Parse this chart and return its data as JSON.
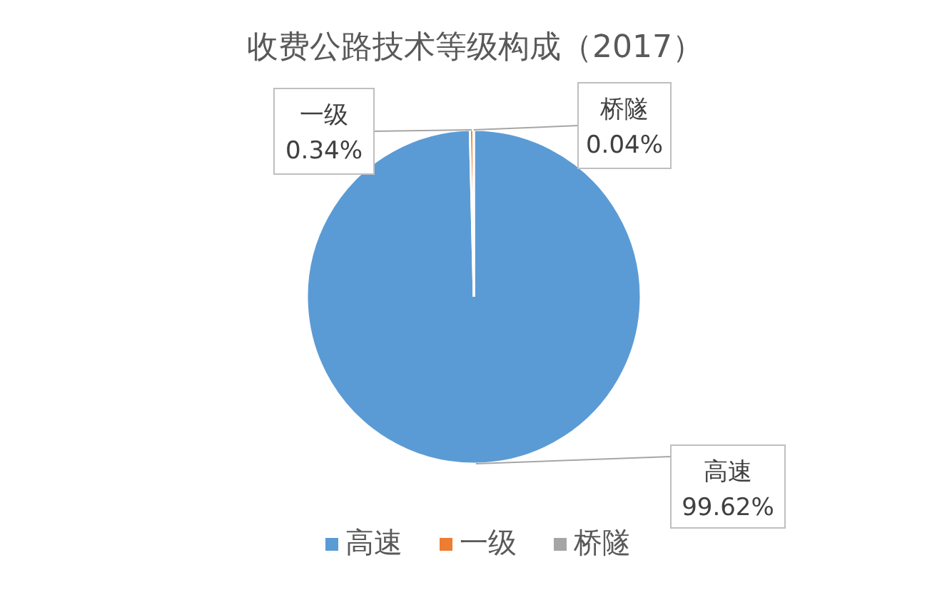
{
  "chart_data": {
    "type": "pie",
    "title": "收费公路技术等级构成（2017）",
    "categories": [
      "高速",
      "一级",
      "桥隧"
    ],
    "values": [
      99.62,
      0.34,
      0.04
    ],
    "colors": [
      "#5b9bd5",
      "#ed7d31",
      "#a5a5a5"
    ],
    "value_labels": [
      "99.62%",
      "0.34%",
      "0.04%"
    ],
    "legend": "bottom"
  }
}
